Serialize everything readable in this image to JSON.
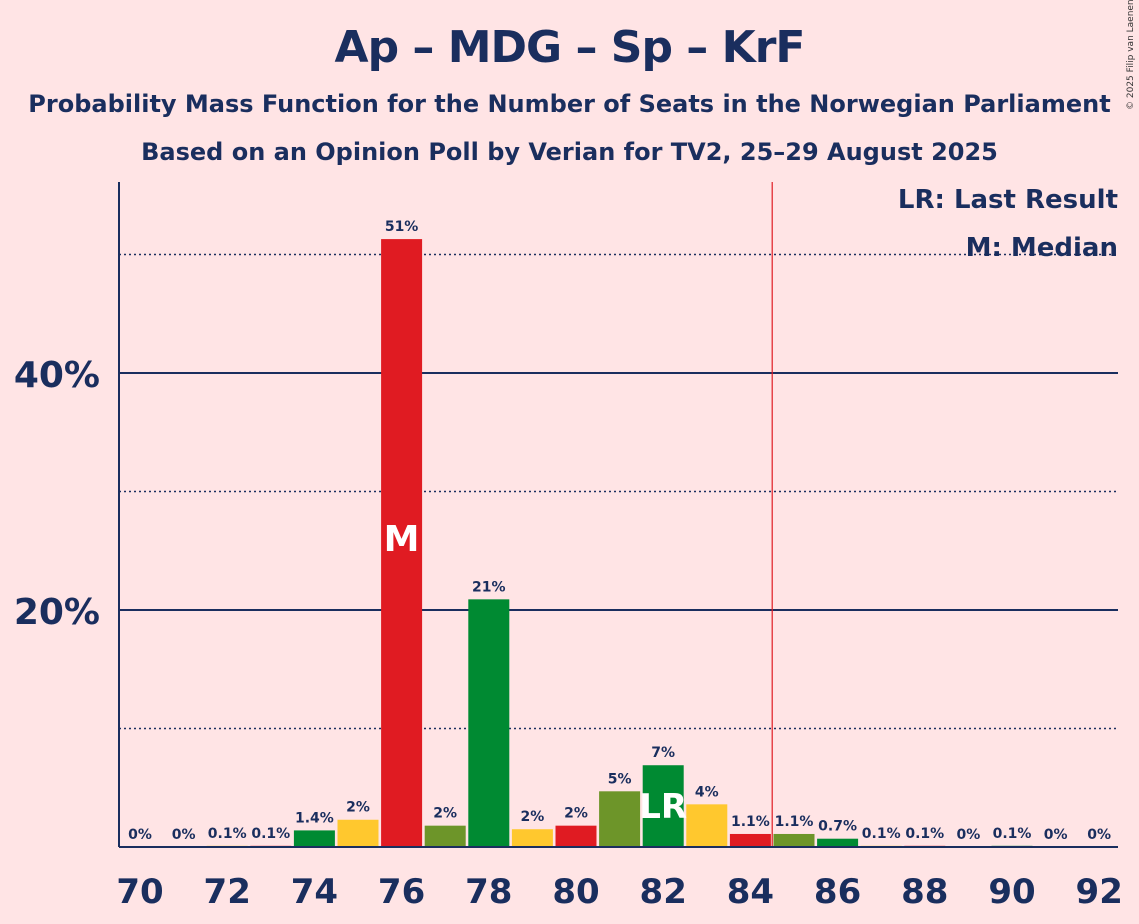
{
  "title": "Ap – MDG – Sp – KrF",
  "subtitle": "Probability Mass Function for the Number of Seats in the Norwegian Parliament",
  "subtitle2": "Based on an Opinion Poll by Verian for TV2, 25–29 August 2025",
  "copyright": "© 2025 Filip van Laenen",
  "legend": {
    "lr": "LR: Last Result",
    "m": "M: Median"
  },
  "colors": {
    "background": "#ffe4e5",
    "axis": "#1a2e5e",
    "red": "#e01b22",
    "green": "#008a32",
    "olive": "#6d9529",
    "yellow": "#ffc82e",
    "majority_line": "#e01b22"
  },
  "chart_data": {
    "type": "bar",
    "x": [
      70,
      71,
      72,
      73,
      74,
      75,
      76,
      77,
      78,
      79,
      80,
      81,
      82,
      83,
      84,
      85,
      86,
      87,
      88,
      89,
      90,
      91,
      92
    ],
    "values": [
      0,
      0,
      0.1,
      0.1,
      1.4,
      2.3,
      51.3,
      1.8,
      20.9,
      1.5,
      1.8,
      4.7,
      6.9,
      3.6,
      1.1,
      1.1,
      0.7,
      0.1,
      0.1,
      0,
      0.1,
      0,
      0
    ],
    "data_labels": [
      "0%",
      "0%",
      "0.1%",
      "0.1%",
      "1.4%",
      "2%",
      "51%",
      "2%",
      "21%",
      "2%",
      "2%",
      "5%",
      "7%",
      "4%",
      "1.1%",
      "1.1%",
      "0.7%",
      "0.1%",
      "0.1%",
      "0%",
      "0.1%",
      "0%",
      "0%"
    ],
    "bar_colors": [
      "green",
      "olive",
      "yellow",
      "red",
      "green",
      "yellow",
      "red",
      "olive",
      "green",
      "yellow",
      "red",
      "olive",
      "green",
      "yellow",
      "red",
      "olive",
      "green",
      "yellow",
      "red",
      "olive",
      "green",
      "yellow",
      "red"
    ],
    "x_tick_labels": [
      "70",
      "72",
      "74",
      "76",
      "78",
      "80",
      "82",
      "84",
      "86",
      "88",
      "90",
      "92"
    ],
    "x_tick_values": [
      70,
      72,
      74,
      76,
      78,
      80,
      82,
      84,
      86,
      88,
      90,
      92
    ],
    "y_tick_labels": [
      "20%",
      "40%"
    ],
    "y_tick_values": [
      20,
      40
    ],
    "y_gridlines_solid": [
      20,
      40
    ],
    "y_gridlines_dotted": [
      10,
      30,
      50
    ],
    "ylim": [
      0,
      56
    ],
    "median_seat": 76,
    "median_label": "M",
    "last_result_seat": 82,
    "last_result_label": "LR",
    "majority_threshold": 84.5,
    "xlabel": "",
    "ylabel": ""
  }
}
